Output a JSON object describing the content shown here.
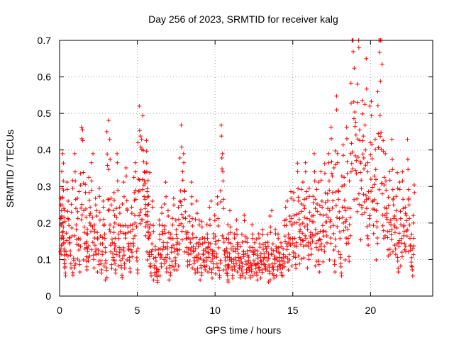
{
  "chart_data": {
    "type": "scatter",
    "title": "Day 256 of 2023, SRMTID for receiver kalg",
    "xlabel": "GPS time / hours",
    "ylabel": "SRMTID / TECUs",
    "xlim": [
      0,
      24
    ],
    "ylim": [
      0,
      0.7
    ],
    "xticks": [
      0,
      5,
      10,
      15,
      20
    ],
    "xtick_labels": [
      "0",
      "5",
      "10",
      "15",
      "20"
    ],
    "yticks": [
      0,
      0.1,
      0.2,
      0.3,
      0.4,
      0.5,
      0.6,
      0.7
    ],
    "ytick_labels": [
      "0",
      "0.1",
      "0.2",
      "0.3",
      "0.4",
      "0.5",
      "0.6",
      "0.7"
    ],
    "grid": true,
    "marker": "+",
    "marker_color": "#ff0000",
    "series": [
      {
        "name": "SRMTID",
        "x": [
          0.1,
          0.2,
          0.3,
          0.4,
          0.5,
          0.6,
          0.7,
          0.8,
          0.9,
          1.0,
          1.1,
          1.2,
          1.3,
          1.4,
          1.5,
          1.6,
          1.7,
          1.75,
          1.8,
          1.9,
          2.0,
          2.1,
          2.2,
          2.3,
          2.4,
          2.5,
          2.6,
          2.7,
          2.8,
          2.9,
          3.0,
          3.1,
          3.2,
          3.3,
          3.4,
          3.5,
          3.55,
          3.6,
          3.7,
          3.8,
          3.9,
          4.0,
          4.1,
          4.2,
          4.3,
          4.4,
          4.5,
          4.6,
          4.7,
          4.8,
          4.9,
          5.0,
          5.1,
          5.2,
          5.3,
          5.4,
          5.5,
          5.55,
          5.6,
          5.65,
          5.7,
          5.75,
          5.8,
          5.9,
          6.0,
          6.1,
          6.2,
          6.3,
          6.4,
          6.5,
          6.6,
          6.7,
          6.8,
          6.9,
          7.0,
          7.1,
          7.2,
          7.3,
          7.4,
          7.5,
          7.6,
          7.7,
          7.8,
          7.9,
          8.0,
          8.1,
          8.2,
          8.3,
          8.4,
          8.5,
          8.6,
          8.7,
          8.8,
          8.9,
          9.0,
          9.1,
          9.2,
          9.3,
          9.4,
          9.5,
          9.6,
          9.7,
          9.8,
          9.9,
          10.0,
          10.1,
          10.2,
          10.3,
          10.4,
          10.5,
          10.6,
          10.7,
          10.8,
          10.85,
          10.9,
          11.0,
          11.1,
          11.2,
          11.3,
          11.4,
          11.5,
          11.6,
          11.7,
          11.8,
          11.9,
          12.0,
          12.1,
          12.2,
          12.3,
          12.4,
          12.5,
          12.6,
          12.7,
          12.8,
          12.9,
          13.0,
          13.1,
          13.2,
          13.3,
          13.4,
          13.5,
          13.6,
          13.7,
          13.8,
          13.9,
          14.0,
          14.1,
          14.2,
          14.3,
          14.4,
          14.5,
          14.6,
          14.7,
          14.8,
          14.9,
          15.0,
          15.1,
          15.2,
          15.3,
          15.4,
          15.5,
          15.6,
          15.7,
          15.8,
          15.9,
          16.0,
          16.1,
          16.2,
          16.3,
          16.4,
          16.5,
          16.6,
          16.7,
          16.8,
          16.9,
          17.0,
          17.1,
          17.2,
          17.3,
          17.4,
          17.5,
          17.6,
          17.7,
          17.8,
          17.9,
          18.0,
          18.1,
          18.2,
          18.3,
          18.4,
          18.5,
          18.6,
          18.7,
          18.8,
          18.9,
          19.0,
          19.1,
          19.2,
          19.3,
          19.4,
          19.5,
          19.6,
          19.7,
          19.8,
          19.9,
          20.0,
          20.1,
          20.2,
          20.3,
          20.4,
          20.5,
          20.6,
          20.7,
          20.8,
          20.9,
          21.0,
          21.1,
          21.2,
          21.3,
          21.4,
          21.5,
          21.6,
          21.7,
          21.8,
          21.9,
          22.0,
          22.1,
          22.2,
          22.3,
          22.4,
          22.5,
          22.6,
          22.7,
          22.8,
          0.15,
          0.25,
          0.3,
          0.12,
          0.22,
          0.28,
          0.18,
          0.1,
          0.24,
          0.2,
          0.14,
          0.26,
          0.08,
          0.3,
          0.16,
          0.22,
          0.12,
          0.38,
          0.35,
          0.18,
          0.27,
          0.15,
          0.1,
          0.25,
          0.2,
          0.3,
          0.14,
          0.22,
          0.18,
          0.12,
          0.26,
          0.1,
          0.2,
          0.15,
          0.08,
          0.37,
          0.33,
          0.22,
          0.12,
          0.18,
          0.25,
          0.1,
          0.3,
          0.15,
          0.2,
          0.08,
          0.24,
          0.14,
          0.27,
          0.18,
          0.12,
          0.2,
          0.15,
          0.25,
          0.3,
          0.1,
          0.4,
          0.36,
          0.33,
          0.38,
          0.3,
          0.35,
          0.28,
          0.22,
          0.18,
          0.26,
          0.15,
          0.1,
          0.2,
          0.08,
          0.12,
          0.06,
          0.16,
          0.1,
          0.2,
          0.14,
          0.24,
          0.12,
          0.18,
          0.08,
          0.15,
          0.22,
          0.1,
          0.16,
          0.13,
          0.2,
          0.36,
          0.28,
          0.3,
          0.22,
          0.15,
          0.18,
          0.12,
          0.24,
          0.14,
          0.1,
          0.2,
          0.12,
          0.16,
          0.08,
          0.18,
          0.13,
          0.1,
          0.15,
          0.12,
          0.2,
          0.09,
          0.14,
          0.17,
          0.11,
          0.24,
          0.08,
          0.36,
          0.3,
          0.13,
          0.1,
          0.15,
          0.07,
          0.12,
          0.18,
          0.09,
          0.14,
          0.1,
          0.16,
          0.12,
          0.08,
          0.13,
          0.1,
          0.17,
          0.09,
          0.14,
          0.11,
          0.07,
          0.15,
          0.1,
          0.12,
          0.08,
          0.14,
          0.11,
          0.09,
          0.16,
          0.12,
          0.1,
          0.13,
          0.07,
          0.18,
          0.11,
          0.09,
          0.14,
          0.1,
          0.15,
          0.12,
          0.08,
          0.1,
          0.17,
          0.2,
          0.13,
          0.18,
          0.22,
          0.15,
          0.25,
          0.12,
          0.28,
          0.2,
          0.16,
          0.24,
          0.19,
          0.3,
          0.22,
          0.14,
          0.26,
          0.18,
          0.21,
          0.3,
          0.15,
          0.24,
          0.12,
          0.28,
          0.2,
          0.17,
          0.32,
          0.23,
          0.3,
          0.18,
          0.38,
          0.27,
          0.12,
          0.45,
          0.3,
          0.22,
          0.1,
          0.34,
          0.25,
          0.18,
          0.38,
          0.15,
          0.3,
          0.66,
          0.55,
          0.48,
          0.42,
          0.6,
          0.35,
          0.28,
          0.44,
          0.36,
          0.5,
          0.3,
          0.22,
          0.4,
          0.47,
          0.27,
          0.33,
          0.18,
          0.46,
          0.69,
          0.56,
          0.35,
          0.25,
          0.3,
          0.2,
          0.28,
          0.16,
          0.33,
          0.22,
          0.18,
          0.26,
          0.12,
          0.24,
          0.15,
          0.3,
          0.2,
          0.17,
          0.33,
          0.22,
          0.13,
          0.1,
          0.25,
          0.18,
          0.3,
          0.14,
          0.22
        ]
      }
    ]
  }
}
